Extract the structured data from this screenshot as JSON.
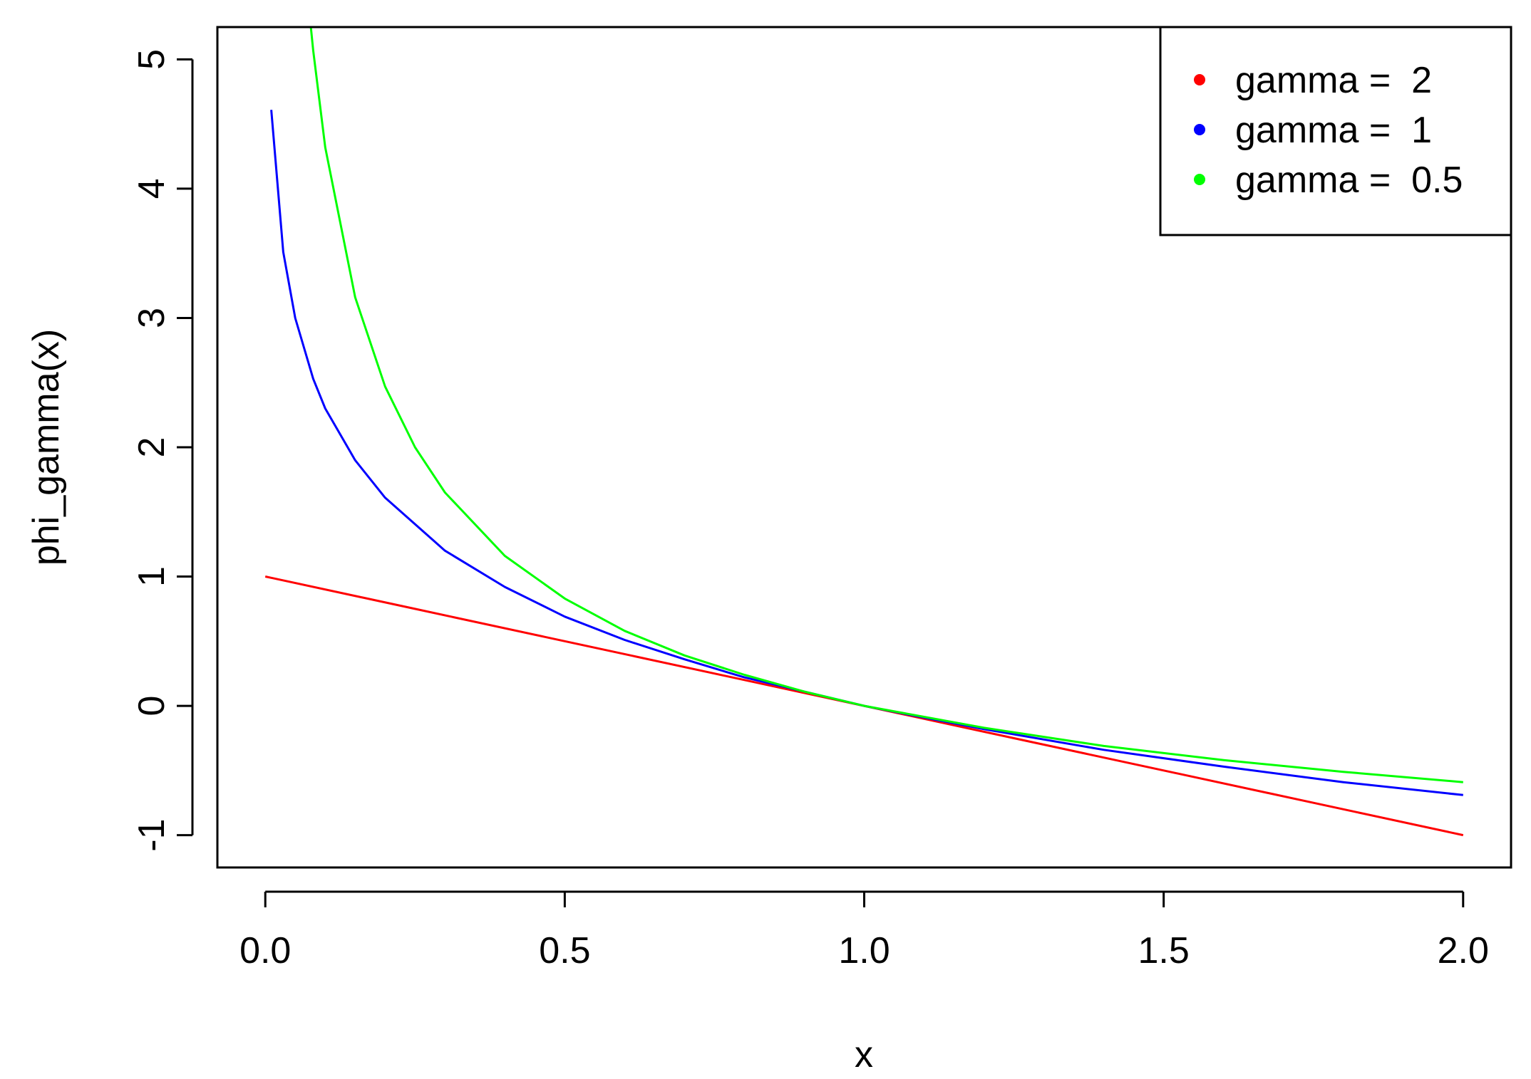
{
  "chart_data": {
    "type": "line",
    "xlabel": "x",
    "ylabel": "phi_gamma(x)",
    "xlim": [
      -0.08,
      2.08
    ],
    "ylim": [
      -1.25,
      5.25
    ],
    "x_ticks": [
      {
        "value": 0.0,
        "label": "0.0"
      },
      {
        "value": 0.5,
        "label": "0.5"
      },
      {
        "value": 1.0,
        "label": "1.0"
      },
      {
        "value": 1.5,
        "label": "1.5"
      },
      {
        "value": 2.0,
        "label": "2.0"
      }
    ],
    "y_ticks": [
      {
        "value": -1,
        "label": "-1"
      },
      {
        "value": 0,
        "label": "0"
      },
      {
        "value": 1,
        "label": "1"
      },
      {
        "value": 2,
        "label": "2"
      },
      {
        "value": 3,
        "label": "3"
      },
      {
        "value": 4,
        "label": "4"
      },
      {
        "value": 5,
        "label": "5"
      }
    ],
    "grid": false,
    "legend_position": "top-right",
    "series": [
      {
        "name": "gamma =  2",
        "gamma": 2,
        "color": "#ff0000",
        "x": [
          0.0,
          0.25,
          0.5,
          0.75,
          1.0,
          1.25,
          1.5,
          1.75,
          2.0
        ],
        "y": [
          1.0,
          0.75,
          0.5,
          0.25,
          0.0,
          -0.25,
          -0.5,
          -0.75,
          -1.0
        ]
      },
      {
        "name": "gamma =  1",
        "gamma": 1,
        "color": "#0000ff",
        "x": [
          0.01,
          0.03,
          0.05,
          0.08,
          0.1,
          0.15,
          0.2,
          0.3,
          0.4,
          0.5,
          0.6,
          0.7,
          0.8,
          0.9,
          1.0,
          1.2,
          1.4,
          1.6,
          1.8,
          2.0
        ],
        "y": [
          4.61,
          3.51,
          3.0,
          2.53,
          2.3,
          1.9,
          1.61,
          1.2,
          0.92,
          0.69,
          0.51,
          0.36,
          0.22,
          0.11,
          0.0,
          -0.18,
          -0.34,
          -0.47,
          -0.59,
          -0.69
        ]
      },
      {
        "name": "gamma =  0.5",
        "gamma": 0.5,
        "color": "#00ff00",
        "x": [
          0.075,
          0.08,
          0.1,
          0.15,
          0.2,
          0.25,
          0.3,
          0.4,
          0.5,
          0.6,
          0.7,
          0.8,
          0.9,
          1.0,
          1.2,
          1.4,
          1.6,
          1.8,
          2.0
        ],
        "y": [
          5.3,
          5.07,
          4.32,
          3.16,
          2.47,
          2.0,
          1.65,
          1.16,
          0.83,
          0.58,
          0.39,
          0.24,
          0.11,
          0.0,
          -0.17,
          -0.31,
          -0.42,
          -0.51,
          -0.59
        ]
      }
    ]
  }
}
